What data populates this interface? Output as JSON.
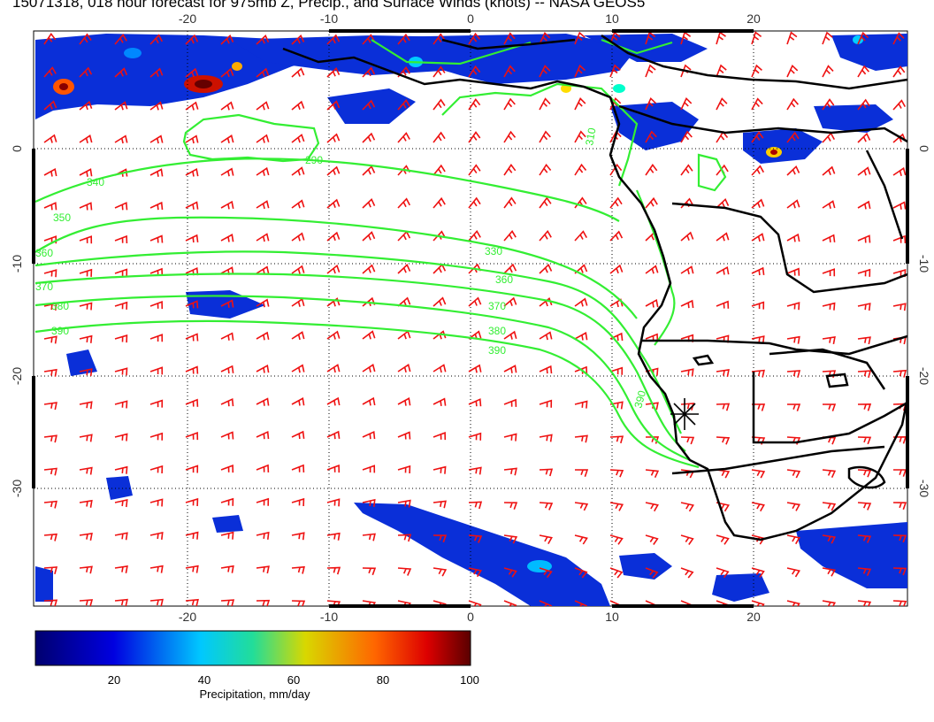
{
  "title": "15071318, 018 hour forecast for 975mb Z, Precip., and Surface Winds (knots) -- NASA GEOS5",
  "map": {
    "lon_range": [
      -30,
      30
    ],
    "lat_range": [
      -40,
      10
    ],
    "lon_ticks": [
      "-20",
      "-10",
      "0",
      "10",
      "20"
    ],
    "lat_ticks": [
      "0",
      "-10",
      "-20",
      "-30"
    ],
    "grid": "dotted",
    "colors": {
      "winds": "#ee1111",
      "contours": "#33ee33",
      "coast": "#000000"
    }
  },
  "contour_labels": [
    "340",
    "350",
    "360",
    "370",
    "380",
    "390",
    "330",
    "360",
    "370",
    "380",
    "390",
    "390",
    "310",
    "290"
  ],
  "marker": {
    "symbol": "star",
    "lon": 15,
    "lat": -23.5
  },
  "colorbar": {
    "label": "Precipitation, mm/day",
    "ticks": [
      "20",
      "40",
      "60",
      "80",
      "100"
    ],
    "range": [
      0,
      100
    ],
    "colors": [
      "#00007f",
      "#0000ff",
      "#00ffff",
      "#ffff00",
      "#ff0000",
      "#7f0000"
    ]
  }
}
